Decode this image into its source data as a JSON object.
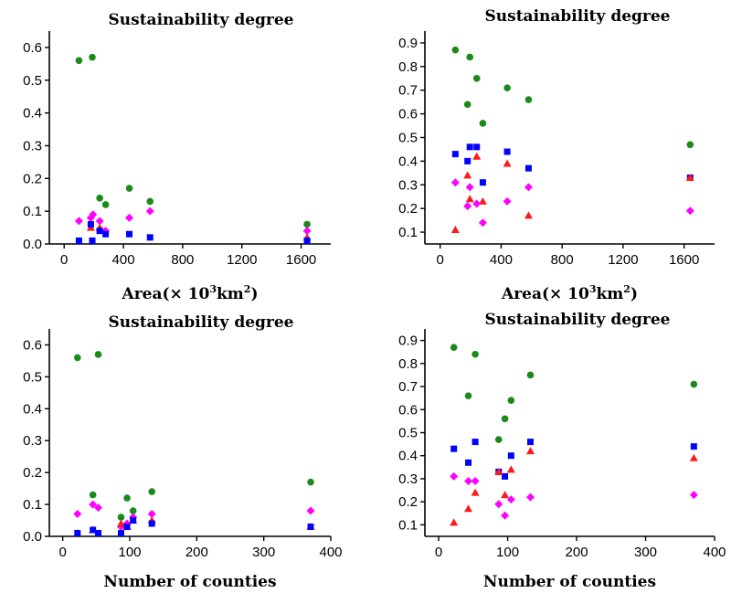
{
  "chart_data": [
    {
      "type": "scatter",
      "title": "Sustainability degree",
      "xlabel": "Area(× 10³km²)",
      "xlabel_parts": {
        "pre": "Area(× 10",
        "sup1": "3",
        "mid": "km",
        "sup2": "2",
        "post": ")"
      },
      "xlim": [
        -100,
        1800
      ],
      "ylim": [
        0,
        0.65
      ],
      "xticks": [
        0,
        400,
        800,
        1200,
        1600
      ],
      "yticks": [
        0.0,
        0.1,
        0.2,
        0.3,
        0.4,
        0.5,
        0.6
      ],
      "ytick_labels": [
        "0.0",
        "0.1",
        "0.2",
        "0.3",
        "0.4",
        "0.5",
        "0.6"
      ],
      "series": [
        {
          "marker": "circle",
          "color": "#1a8a1a",
          "points": [
            [
              100,
              0.56
            ],
            [
              190,
              0.57
            ],
            [
              240,
              0.14
            ],
            [
              280,
              0.12
            ],
            [
              440,
              0.17
            ],
            [
              580,
              0.13
            ],
            [
              1640,
              0.06
            ]
          ]
        },
        {
          "marker": "diamond",
          "color": "#ff00ff",
          "points": [
            [
              100,
              0.07
            ],
            [
              180,
              0.08
            ],
            [
              195,
              0.09
            ],
            [
              240,
              0.07
            ],
            [
              280,
              0.04
            ],
            [
              440,
              0.08
            ],
            [
              580,
              0.1
            ],
            [
              1640,
              0.04
            ]
          ]
        },
        {
          "marker": "triangle",
          "color": "#ff1a1a",
          "points": [
            [
              180,
              0.05
            ],
            [
              240,
              0.05
            ],
            [
              1640,
              0.02
            ]
          ]
        },
        {
          "marker": "square",
          "color": "#0000ff",
          "points": [
            [
              100,
              0.01
            ],
            [
              180,
              0.06
            ],
            [
              190,
              0.01
            ],
            [
              240,
              0.04
            ],
            [
              280,
              0.03
            ],
            [
              440,
              0.03
            ],
            [
              580,
              0.02
            ],
            [
              1640,
              0.01
            ]
          ]
        }
      ]
    },
    {
      "type": "scatter",
      "title": "Sustainability degree",
      "xlabel": "Area(× 10³km²)",
      "xlabel_parts": {
        "pre": "Area(× 10",
        "sup1": "3",
        "mid": "km",
        "sup2": "2",
        "post": ")"
      },
      "xlim": [
        -100,
        1800
      ],
      "ylim": [
        0.05,
        0.95
      ],
      "xticks": [
        0,
        400,
        800,
        1200,
        1600
      ],
      "yticks": [
        0.1,
        0.2,
        0.3,
        0.4,
        0.5,
        0.6,
        0.7,
        0.8,
        0.9
      ],
      "ytick_labels": [
        "0.1",
        "0.2",
        "0.3",
        "0.4",
        "0.5",
        "0.6",
        "0.7",
        "0.8",
        "0.9"
      ],
      "series": [
        {
          "marker": "circle",
          "color": "#1a8a1a",
          "points": [
            [
              100,
              0.87
            ],
            [
              180,
              0.64
            ],
            [
              195,
              0.84
            ],
            [
              240,
              0.75
            ],
            [
              280,
              0.56
            ],
            [
              440,
              0.71
            ],
            [
              580,
              0.66
            ],
            [
              1640,
              0.47
            ]
          ]
        },
        {
          "marker": "square",
          "color": "#0000ff",
          "points": [
            [
              100,
              0.43
            ],
            [
              180,
              0.4
            ],
            [
              195,
              0.46
            ],
            [
              240,
              0.46
            ],
            [
              280,
              0.31
            ],
            [
              440,
              0.44
            ],
            [
              580,
              0.37
            ],
            [
              1640,
              0.33
            ]
          ]
        },
        {
          "marker": "triangle",
          "color": "#ff1a1a",
          "points": [
            [
              100,
              0.11
            ],
            [
              180,
              0.34
            ],
            [
              195,
              0.24
            ],
            [
              240,
              0.42
            ],
            [
              280,
              0.23
            ],
            [
              440,
              0.39
            ],
            [
              580,
              0.17
            ],
            [
              1640,
              0.33
            ]
          ]
        },
        {
          "marker": "diamond",
          "color": "#ff00ff",
          "points": [
            [
              100,
              0.31
            ],
            [
              180,
              0.21
            ],
            [
              195,
              0.29
            ],
            [
              240,
              0.22
            ],
            [
              280,
              0.14
            ],
            [
              440,
              0.23
            ],
            [
              580,
              0.29
            ],
            [
              1640,
              0.19
            ]
          ]
        }
      ]
    },
    {
      "type": "scatter",
      "title": "Sustainability degree",
      "xlabel": "Number of counties",
      "xlim": [
        -20,
        400
      ],
      "ylim": [
        0,
        0.65
      ],
      "xticks": [
        0,
        100,
        200,
        300,
        400
      ],
      "yticks": [
        0.0,
        0.1,
        0.2,
        0.3,
        0.4,
        0.5,
        0.6
      ],
      "ytick_labels": [
        "0.0",
        "0.1",
        "0.2",
        "0.3",
        "0.4",
        "0.5",
        "0.6"
      ],
      "series": [
        {
          "marker": "circle",
          "color": "#1a8a1a",
          "points": [
            [
              22,
              0.56
            ],
            [
              45,
              0.13
            ],
            [
              53,
              0.57
            ],
            [
              87,
              0.06
            ],
            [
              96,
              0.12
            ],
            [
              105,
              0.08
            ],
            [
              133,
              0.14
            ],
            [
              370,
              0.17
            ]
          ]
        },
        {
          "marker": "diamond",
          "color": "#ff00ff",
          "points": [
            [
              22,
              0.07
            ],
            [
              45,
              0.1
            ],
            [
              53,
              0.09
            ],
            [
              87,
              0.03
            ],
            [
              96,
              0.04
            ],
            [
              105,
              0.06
            ],
            [
              133,
              0.07
            ],
            [
              370,
              0.08
            ]
          ]
        },
        {
          "marker": "triangle",
          "color": "#ff1a1a",
          "points": [
            [
              22,
              0.01
            ],
            [
              45,
              0.02
            ],
            [
              87,
              0.04
            ],
            [
              96,
              0.03
            ],
            [
              105,
              0.05
            ],
            [
              133,
              0.05
            ],
            [
              370,
              0.03
            ]
          ]
        },
        {
          "marker": "square",
          "color": "#0000ff",
          "points": [
            [
              22,
              0.01
            ],
            [
              45,
              0.02
            ],
            [
              53,
              0.01
            ],
            [
              87,
              0.01
            ],
            [
              96,
              0.03
            ],
            [
              105,
              0.05
            ],
            [
              133,
              0.04
            ],
            [
              370,
              0.03
            ]
          ]
        }
      ]
    },
    {
      "type": "scatter",
      "title": "Sustainability degree",
      "xlabel": "Number of counties",
      "xlim": [
        -20,
        400
      ],
      "ylim": [
        0.05,
        0.95
      ],
      "xticks": [
        0,
        100,
        200,
        300,
        400
      ],
      "yticks": [
        0.1,
        0.2,
        0.3,
        0.4,
        0.5,
        0.6,
        0.7,
        0.8,
        0.9
      ],
      "ytick_labels": [
        "0.1",
        "0.2",
        "0.3",
        "0.4",
        "0.5",
        "0.6",
        "0.7",
        "0.8",
        "0.9"
      ],
      "series": [
        {
          "marker": "circle",
          "color": "#1a8a1a",
          "points": [
            [
              22,
              0.87
            ],
            [
              43,
              0.66
            ],
            [
              53,
              0.84
            ],
            [
              87,
              0.47
            ],
            [
              96,
              0.56
            ],
            [
              105,
              0.64
            ],
            [
              133,
              0.75
            ],
            [
              370,
              0.71
            ]
          ]
        },
        {
          "marker": "square",
          "color": "#0000ff",
          "points": [
            [
              22,
              0.43
            ],
            [
              43,
              0.37
            ],
            [
              53,
              0.46
            ],
            [
              87,
              0.33
            ],
            [
              96,
              0.31
            ],
            [
              105,
              0.4
            ],
            [
              133,
              0.46
            ],
            [
              370,
              0.44
            ]
          ]
        },
        {
          "marker": "triangle",
          "color": "#ff1a1a",
          "points": [
            [
              22,
              0.11
            ],
            [
              43,
              0.17
            ],
            [
              53,
              0.24
            ],
            [
              87,
              0.33
            ],
            [
              96,
              0.23
            ],
            [
              105,
              0.34
            ],
            [
              133,
              0.42
            ],
            [
              370,
              0.39
            ]
          ]
        },
        {
          "marker": "diamond",
          "color": "#ff00ff",
          "points": [
            [
              22,
              0.31
            ],
            [
              43,
              0.29
            ],
            [
              53,
              0.29
            ],
            [
              87,
              0.19
            ],
            [
              96,
              0.14
            ],
            [
              105,
              0.21
            ],
            [
              133,
              0.22
            ],
            [
              370,
              0.23
            ]
          ]
        }
      ]
    }
  ]
}
